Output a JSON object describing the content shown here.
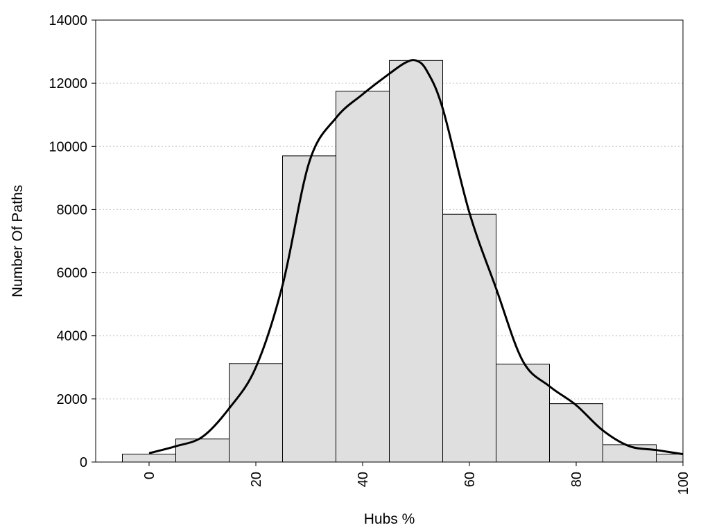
{
  "chart_data": {
    "type": "bar",
    "title": "",
    "xlabel": "Hubs %",
    "ylabel": "Number Of Paths",
    "xlim": [
      -10,
      100
    ],
    "ylim": [
      0,
      14000
    ],
    "x_ticks": [
      0,
      20,
      40,
      60,
      80,
      100
    ],
    "y_ticks": [
      0,
      2000,
      4000,
      6000,
      8000,
      10000,
      12000,
      14000
    ],
    "grid": "horizontal dotted",
    "bin_width": 10,
    "bins": [
      {
        "center": 0,
        "value": 250
      },
      {
        "center": 10,
        "value": 730
      },
      {
        "center": 20,
        "value": 3120
      },
      {
        "center": 30,
        "value": 9700
      },
      {
        "center": 40,
        "value": 11750
      },
      {
        "center": 50,
        "value": 12720
      },
      {
        "center": 60,
        "value": 7850
      },
      {
        "center": 70,
        "value": 3100
      },
      {
        "center": 80,
        "value": 1850
      },
      {
        "center": 90,
        "value": 550
      },
      {
        "center": 100,
        "value": 250
      }
    ],
    "density_curve": [
      {
        "x": 0,
        "y": 280
      },
      {
        "x": 5,
        "y": 500
      },
      {
        "x": 10,
        "y": 800
      },
      {
        "x": 15,
        "y": 1700
      },
      {
        "x": 20,
        "y": 3000
      },
      {
        "x": 25,
        "y": 5600
      },
      {
        "x": 30,
        "y": 9500
      },
      {
        "x": 35,
        "y": 10900
      },
      {
        "x": 40,
        "y": 11650
      },
      {
        "x": 45,
        "y": 12300
      },
      {
        "x": 48,
        "y": 12650
      },
      {
        "x": 50,
        "y": 12720
      },
      {
        "x": 52,
        "y": 12400
      },
      {
        "x": 55,
        "y": 11200
      },
      {
        "x": 60,
        "y": 7900
      },
      {
        "x": 65,
        "y": 5500
      },
      {
        "x": 70,
        "y": 3200
      },
      {
        "x": 75,
        "y": 2400
      },
      {
        "x": 80,
        "y": 1800
      },
      {
        "x": 85,
        "y": 1000
      },
      {
        "x": 90,
        "y": 500
      },
      {
        "x": 95,
        "y": 380
      },
      {
        "x": 100,
        "y": 250
      }
    ],
    "colors": {
      "bar_fill": "#dfdfdf",
      "bar_stroke": "#000000",
      "curve": "#000000",
      "grid": "#c8c8c8"
    }
  }
}
